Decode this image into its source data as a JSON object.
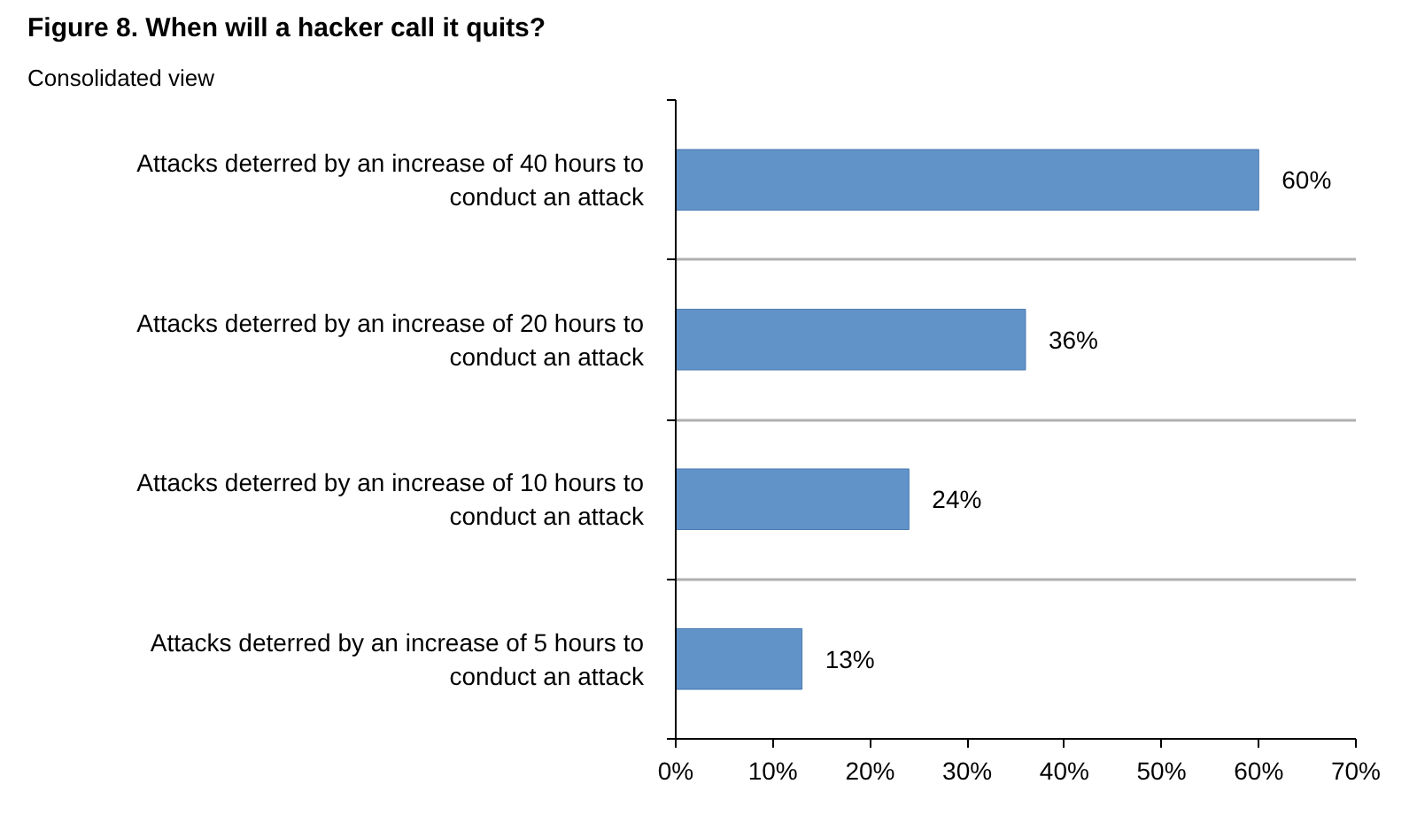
{
  "chart_data": {
    "type": "bar",
    "orientation": "horizontal",
    "title": "Figure 8. When will a hacker call it quits?",
    "subtitle": "Consolidated view",
    "categories": [
      "Attacks deterred by an increase of 40 hours to conduct an attack",
      "Attacks deterred by an increase of 20 hours to conduct an attack",
      "Attacks deterred by an increase of 10 hours to conduct an attack",
      "Attacks deterred by an increase of 5 hours to conduct an attack"
    ],
    "values": [
      60,
      36,
      24,
      13
    ],
    "value_labels": [
      "60%",
      "36%",
      "24%",
      "13%"
    ],
    "color": "#6193c9",
    "xlim": [
      0,
      70
    ],
    "xticks": [
      {
        "value": 0,
        "label": "0%"
      },
      {
        "value": 10,
        "label": "10%"
      },
      {
        "value": 20,
        "label": "20%"
      },
      {
        "value": 30,
        "label": "30%"
      },
      {
        "value": 40,
        "label": "40%"
      },
      {
        "value": 50,
        "label": "50%"
      },
      {
        "value": 60,
        "label": "60%"
      },
      {
        "value": 70,
        "label": "70%"
      }
    ],
    "grid": "y"
  }
}
